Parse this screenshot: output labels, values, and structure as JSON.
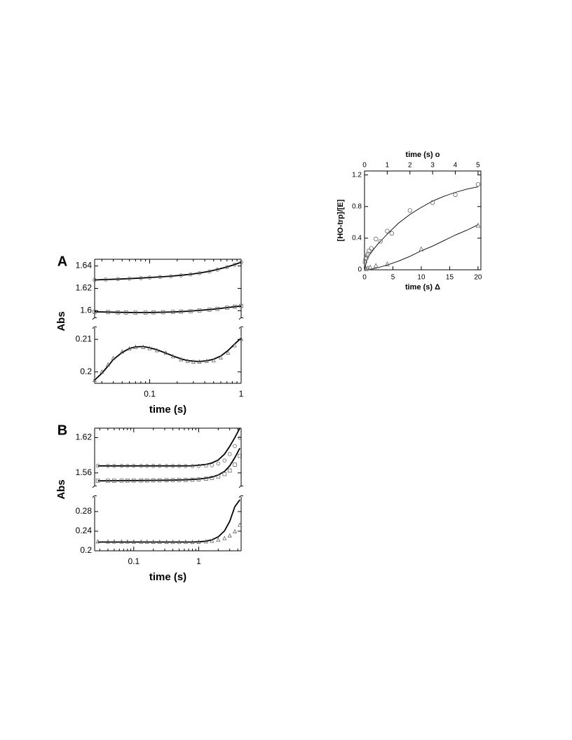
{
  "chart_data": [
    {
      "panel_letter": "A",
      "type": "scatter",
      "xscale": "log",
      "xlim": [
        0.025,
        1
      ],
      "xticks": [
        "0.1",
        "1"
      ],
      "xlabel": "time (s)",
      "ylabel": "Abs",
      "upper_axis": {
        "ylim": [
          1.594,
          1.646
        ],
        "ticks": [
          "1.6",
          "1.62",
          "1.64"
        ]
      },
      "lower_axis": {
        "ylim": [
          0.1965,
          0.2135
        ],
        "ticks": [
          "0.2",
          "0.21"
        ]
      },
      "series": [
        {
          "marker": "circle",
          "axis": "upper",
          "x": [
            0.025,
            0.033,
            0.045,
            0.06,
            0.08,
            0.1,
            0.13,
            0.17,
            0.22,
            0.28,
            0.35,
            0.45,
            0.55,
            0.7,
            0.85,
            1.0
          ],
          "y": [
            1.6276,
            1.6279,
            1.6283,
            1.6287,
            1.6291,
            1.6297,
            1.6302,
            1.6308,
            1.6316,
            1.6325,
            1.6336,
            1.6352,
            1.6367,
            1.639,
            1.6412,
            1.6432
          ],
          "fit_y": [
            1.6275,
            1.6279,
            1.6283,
            1.6287,
            1.6292,
            1.6297,
            1.6303,
            1.6309,
            1.6317,
            1.6326,
            1.6337,
            1.6353,
            1.6369,
            1.6391,
            1.6413,
            1.6434
          ]
        },
        {
          "marker": "square",
          "axis": "upper",
          "x": [
            0.025,
            0.035,
            0.045,
            0.055,
            0.07,
            0.09,
            0.11,
            0.14,
            0.18,
            0.22,
            0.28,
            0.35,
            0.45,
            0.55,
            0.7,
            0.85,
            1.0
          ],
          "y": [
            1.599,
            1.5988,
            1.5985,
            1.5984,
            1.5983,
            1.5983,
            1.5985,
            1.5987,
            1.5989,
            1.5992,
            1.5996,
            1.6002,
            1.6009,
            1.6017,
            1.6027,
            1.6036,
            1.6043
          ],
          "fit_y": [
            1.599,
            1.5988,
            1.5986,
            1.5985,
            1.5984,
            1.5984,
            1.5985,
            1.5987,
            1.5989,
            1.5992,
            1.5997,
            1.6003,
            1.601,
            1.6018,
            1.6028,
            1.6036,
            1.6042
          ]
        },
        {
          "marker": "triangle",
          "axis": "lower",
          "x": [
            0.025,
            0.03,
            0.035,
            0.04,
            0.05,
            0.06,
            0.07,
            0.085,
            0.1,
            0.12,
            0.15,
            0.18,
            0.22,
            0.26,
            0.3,
            0.35,
            0.42,
            0.5,
            0.6,
            0.72,
            0.85,
            1.0
          ],
          "y": [
            0.1975,
            0.2,
            0.2022,
            0.2042,
            0.2062,
            0.2071,
            0.2076,
            0.2076,
            0.2072,
            0.2066,
            0.2058,
            0.2047,
            0.2038,
            0.2033,
            0.2031,
            0.2031,
            0.2033,
            0.2035,
            0.2044,
            0.2058,
            0.2081,
            0.2101
          ],
          "fit_y": [
            0.1975,
            0.1996,
            0.2018,
            0.2038,
            0.206,
            0.2072,
            0.2077,
            0.2078,
            0.2074,
            0.2068,
            0.2058,
            0.2049,
            0.204,
            0.2035,
            0.2033,
            0.2032,
            0.2034,
            0.2039,
            0.2049,
            0.2066,
            0.2086,
            0.2104
          ]
        }
      ]
    },
    {
      "panel_letter": "B",
      "type": "scatter",
      "xscale": "log",
      "xlim": [
        0.025,
        4.5
      ],
      "xticks": [
        "0.1",
        "1"
      ],
      "xlabel": "time (s)",
      "ylabel": "Abs",
      "upper_axis": {
        "ylim": [
          1.536,
          1.636
        ],
        "ticks": [
          "1.56",
          "1.62"
        ]
      },
      "lower_axis": {
        "ylim": [
          0.2,
          0.31
        ],
        "ticks": [
          "0.2",
          "0.24",
          "0.28"
        ]
      },
      "series": [
        {
          "marker": "circle",
          "axis": "upper",
          "x": [
            0.028,
            0.04,
            0.05,
            0.065,
            0.08,
            0.1,
            0.13,
            0.16,
            0.2,
            0.25,
            0.32,
            0.4,
            0.5,
            0.63,
            0.8,
            1.0,
            1.3,
            1.6,
            2.0,
            2.5,
            3.0,
            3.6,
            4.3
          ],
          "y": [
            1.5722,
            1.5721,
            1.572,
            1.572,
            1.572,
            1.572,
            1.5719,
            1.5719,
            1.5719,
            1.5719,
            1.5718,
            1.5718,
            1.5718,
            1.5717,
            1.5717,
            1.5718,
            1.5723,
            1.573,
            1.576,
            1.581,
            1.592,
            1.6055,
            1.6195
          ],
          "fit_y": [
            1.572,
            1.572,
            1.572,
            1.572,
            1.572,
            1.572,
            1.572,
            1.572,
            1.572,
            1.572,
            1.572,
            1.572,
            1.572,
            1.572,
            1.5722,
            1.573,
            1.5745,
            1.577,
            1.582,
            1.592,
            1.605,
            1.62,
            1.636
          ]
        },
        {
          "marker": "square",
          "axis": "upper",
          "x": [
            0.028,
            0.04,
            0.05,
            0.065,
            0.08,
            0.1,
            0.13,
            0.16,
            0.2,
            0.25,
            0.32,
            0.4,
            0.5,
            0.63,
            0.8,
            1.0,
            1.3,
            1.6,
            2.0,
            2.5,
            3.0,
            3.6,
            4.3
          ],
          "y": [
            1.5466,
            1.5466,
            1.5467,
            1.5468,
            1.5469,
            1.547,
            1.5471,
            1.5472,
            1.5473,
            1.5474,
            1.5476,
            1.5477,
            1.5479,
            1.548,
            1.5484,
            1.549,
            1.55,
            1.5515,
            1.554,
            1.558,
            1.564,
            1.574,
            1.589
          ],
          "fit_y": [
            1.5465,
            1.5466,
            1.5467,
            1.5468,
            1.5469,
            1.547,
            1.5471,
            1.5472,
            1.5473,
            1.5474,
            1.5476,
            1.5478,
            1.548,
            1.5483,
            1.5488,
            1.5496,
            1.551,
            1.553,
            1.5565,
            1.5625,
            1.572,
            1.586,
            1.602
          ]
        },
        {
          "marker": "triangle",
          "axis": "lower",
          "x": [
            0.028,
            0.04,
            0.05,
            0.065,
            0.08,
            0.1,
            0.13,
            0.16,
            0.2,
            0.25,
            0.32,
            0.4,
            0.5,
            0.63,
            0.8,
            1.0,
            1.3,
            1.6,
            2.0,
            2.5,
            3.0,
            3.6,
            4.3
          ],
          "y": [
            0.2186,
            0.2185,
            0.2184,
            0.2183,
            0.2182,
            0.2181,
            0.218,
            0.2179,
            0.2178,
            0.2177,
            0.2176,
            0.2175,
            0.2175,
            0.2175,
            0.2176,
            0.2178,
            0.2186,
            0.2198,
            0.2218,
            0.2252,
            0.2305,
            0.2392,
            0.2525
          ],
          "fit_y": [
            0.2178,
            0.2178,
            0.2178,
            0.2178,
            0.2178,
            0.2178,
            0.2178,
            0.2178,
            0.2178,
            0.2178,
            0.2178,
            0.2178,
            0.2178,
            0.2178,
            0.2179,
            0.2183,
            0.2196,
            0.2224,
            0.2285,
            0.2405,
            0.26,
            0.29,
            0.304
          ]
        }
      ]
    },
    {
      "type": "scatter",
      "ylabel": "[HO-trp]/[E]",
      "ylim": [
        0,
        1.25
      ],
      "yticks": [
        "0",
        "0.4",
        "0.8",
        "1.2"
      ],
      "bottom_axis": {
        "label": "time (s) Δ",
        "xlim": [
          0,
          20.5
        ],
        "ticks": [
          "0",
          "5",
          "10",
          "15",
          "20"
        ]
      },
      "top_axis": {
        "label": "time (s) o",
        "xlim": [
          0,
          5.125
        ],
        "ticks": [
          "0",
          "1",
          "2",
          "3",
          "4",
          "5"
        ]
      },
      "series": [
        {
          "marker": "circle",
          "axis": "top",
          "x": [
            0.02,
            0.05,
            0.08,
            0.12,
            0.15,
            0.2,
            0.3,
            0.5,
            0.7,
            1.0,
            1.2,
            2.0,
            3.0,
            4.0,
            5.0
          ],
          "y": [
            0.1,
            0.14,
            0.15,
            0.18,
            0.2,
            0.24,
            0.27,
            0.39,
            0.36,
            0.49,
            0.46,
            0.75,
            0.85,
            0.95,
            1.08
          ],
          "fit_x": [
            0,
            0.1,
            0.2,
            0.4,
            0.6,
            0.8,
            1.0,
            1.5,
            2.0,
            2.5,
            3.0,
            3.5,
            4.0,
            4.5,
            5.0
          ],
          "fit_y": [
            0.0,
            0.12,
            0.18,
            0.26,
            0.33,
            0.39,
            0.45,
            0.59,
            0.7,
            0.79,
            0.87,
            0.93,
            0.98,
            1.02,
            1.05
          ]
        },
        {
          "marker": "triangle",
          "axis": "bottom",
          "x": [
            0.3,
            0.6,
            1.0,
            2.0,
            4.0,
            10.0,
            20.0
          ],
          "y": [
            0.01,
            0.02,
            0.03,
            0.05,
            0.07,
            0.26,
            0.56
          ],
          "fit_x": [
            0,
            0.5,
            1,
            2,
            3,
            4,
            6,
            8,
            10,
            12,
            14,
            16,
            18,
            20
          ],
          "fit_y": [
            0.0,
            0.0,
            0.005,
            0.02,
            0.04,
            0.06,
            0.11,
            0.17,
            0.24,
            0.3,
            0.37,
            0.44,
            0.5,
            0.57
          ]
        }
      ]
    }
  ]
}
